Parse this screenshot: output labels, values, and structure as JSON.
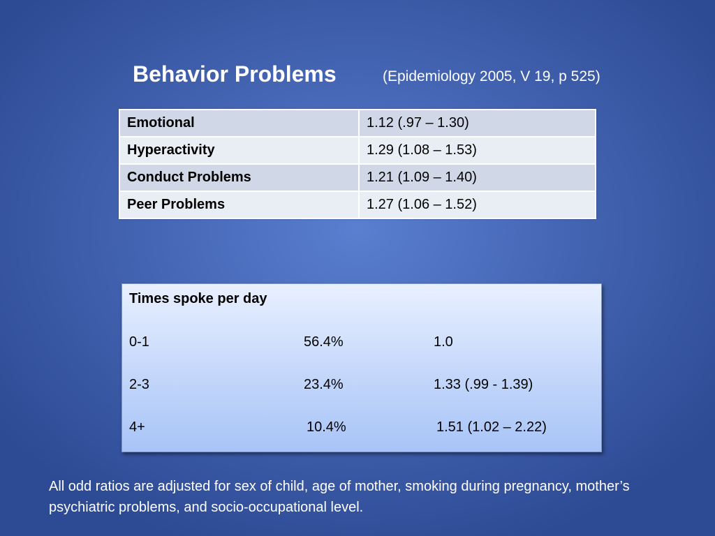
{
  "title": {
    "main": "Behavior Problems",
    "citation": "(Epidemiology 2005, V 19, p 525)"
  },
  "odds_table": {
    "rows": [
      {
        "label": "Emotional",
        "value": "1.12  (.97 – 1.30)"
      },
      {
        "label": "Hyperactivity",
        "value": "1.29  (1.08 – 1.53)"
      },
      {
        "label": "Conduct Problems",
        "value": "1.21  (1.09 – 1.40)"
      },
      {
        "label": "Peer Problems",
        "value": "1.27  (1.06 – 1.52)"
      }
    ]
  },
  "spoke_box": {
    "title": "Times spoke per day",
    "rows": [
      {
        "category": "0-1",
        "percent": "56.4%",
        "ratio": "1.0"
      },
      {
        "category": "2-3",
        "percent": "23.4%",
        "ratio": "1.33  (.99 - 1.39)"
      },
      {
        "category": "4+",
        "percent": "10.4%",
        "ratio": "1.51  (1.02 – 2.22)"
      }
    ]
  },
  "footnote": "All odd ratios are adjusted for sex of child, age of mother, smoking during pregnancy, mother’s psychiatric problems, and socio-occupational level."
}
